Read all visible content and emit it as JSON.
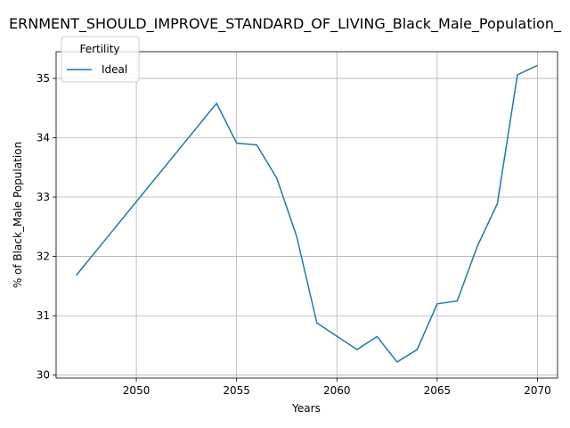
{
  "chart_data": {
    "type": "line",
    "title": "ERNMENT_SHOULD_IMPROVE_STANDARD_OF_LIVING_Black_Male_Population_",
    "xlabel": "Years",
    "ylabel": "% of Black_Male Population",
    "xlim": [
      2046,
      2071
    ],
    "ylim": [
      29.95,
      35.45
    ],
    "xticks": [
      2050,
      2055,
      2060,
      2065,
      2070
    ],
    "yticks": [
      30,
      31,
      32,
      33,
      34,
      35
    ],
    "grid": true,
    "legend": {
      "title": "Fertility",
      "placement": "top-left"
    },
    "series": [
      {
        "name": "Ideal",
        "color": "#1f77b4",
        "x": [
          2047,
          2054,
          2055,
          2056,
          2057,
          2058,
          2059,
          2061,
          2062,
          2063,
          2064,
          2065,
          2066,
          2067,
          2068,
          2069,
          2070
        ],
        "y": [
          31.68,
          34.58,
          33.91,
          33.88,
          33.32,
          32.33,
          30.88,
          30.43,
          30.65,
          30.22,
          30.43,
          31.2,
          31.25,
          32.17,
          32.89,
          35.06,
          35.22
        ]
      }
    ]
  }
}
